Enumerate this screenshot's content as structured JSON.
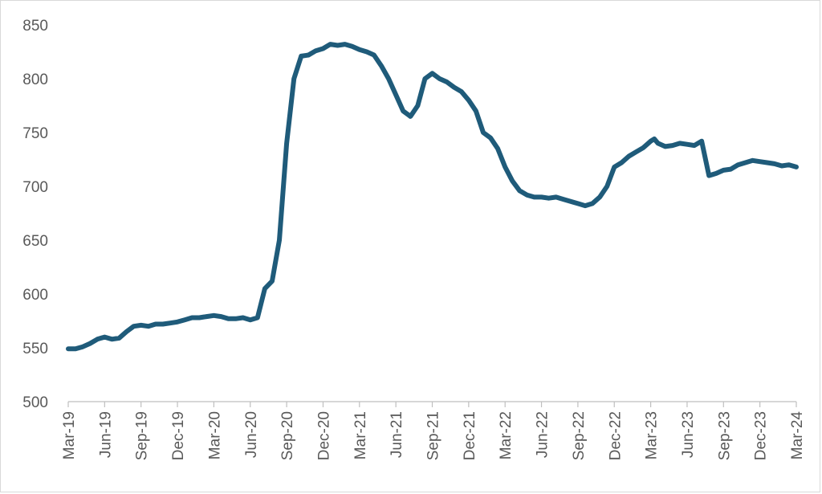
{
  "chart_data": {
    "type": "line",
    "title": "",
    "xlabel": "",
    "ylabel": "",
    "ylim": [
      500,
      850
    ],
    "y_ticks": [
      500,
      550,
      600,
      650,
      700,
      750,
      800,
      850
    ],
    "x_ticks": [
      "Mar-19",
      "Jun-19",
      "Sep-19",
      "Dec-19",
      "Mar-20",
      "Jun-20",
      "Sep-20",
      "Dec-20",
      "Mar-21",
      "Jun-21",
      "Sep-21",
      "Dec-21",
      "Mar-22",
      "Jun-22",
      "Sep-22",
      "Dec-22",
      "Mar-23",
      "Jun-23",
      "Sep-23",
      "Dec-23",
      "Mar-24"
    ],
    "grid": false,
    "legend": "none",
    "line_color": "#1f5b7a",
    "series": [
      {
        "x": [
          0,
          0.2,
          0.4,
          0.6,
          0.8,
          1.0,
          1.2,
          1.4,
          1.6,
          1.8,
          2.0,
          2.2,
          2.4,
          2.6,
          2.8,
          3.0,
          3.2,
          3.4,
          3.6,
          3.8,
          4.0,
          4.2,
          4.4,
          4.6,
          4.8,
          5.0,
          5.2,
          5.4,
          5.6,
          5.8,
          6.0,
          6.2,
          6.4,
          6.6,
          6.8,
          7.0,
          7.2,
          7.4,
          7.6,
          7.8,
          8.0,
          8.2,
          8.4,
          8.6,
          8.8,
          9.0,
          9.2,
          9.4,
          9.6,
          9.8,
          10.0,
          10.2,
          10.4,
          10.6,
          10.8,
          11.0,
          11.2,
          11.4,
          11.6,
          11.8,
          12.0,
          12.2,
          12.4,
          12.6,
          12.8,
          13.0,
          13.2,
          13.4,
          13.6,
          13.8,
          14.0,
          14.2,
          14.4,
          14.6,
          14.8,
          15.0,
          15.2,
          15.4,
          15.6,
          15.8,
          16.0,
          16.1,
          16.2,
          16.4,
          16.6,
          16.8,
          17.0,
          17.2,
          17.4,
          17.6,
          17.8,
          18.0,
          18.2,
          18.4,
          18.6,
          18.8,
          19.0,
          19.2,
          19.4,
          19.6,
          19.8,
          20.0
        ],
        "y": [
          549,
          549,
          551,
          554,
          558,
          560,
          558,
          559,
          565,
          570,
          571,
          570,
          572,
          572,
          573,
          574,
          576,
          578,
          578,
          579,
          580,
          579,
          577,
          577,
          578,
          576,
          578,
          605,
          612,
          650,
          740,
          800,
          821,
          822,
          826,
          828,
          832,
          831,
          832,
          830,
          827,
          825,
          822,
          812,
          800,
          785,
          770,
          765,
          775,
          800,
          805,
          800,
          797,
          792,
          788,
          780,
          770,
          750,
          745,
          735,
          718,
          705,
          696,
          692,
          690,
          690,
          689,
          690,
          688,
          686,
          684,
          682,
          684,
          690,
          700,
          718,
          722,
          728,
          732,
          736,
          742,
          744,
          740,
          737,
          738,
          740,
          739,
          738,
          742,
          710,
          712,
          715,
          716,
          720,
          722,
          724,
          723,
          722,
          721,
          719,
          720,
          718
        ]
      }
    ]
  }
}
